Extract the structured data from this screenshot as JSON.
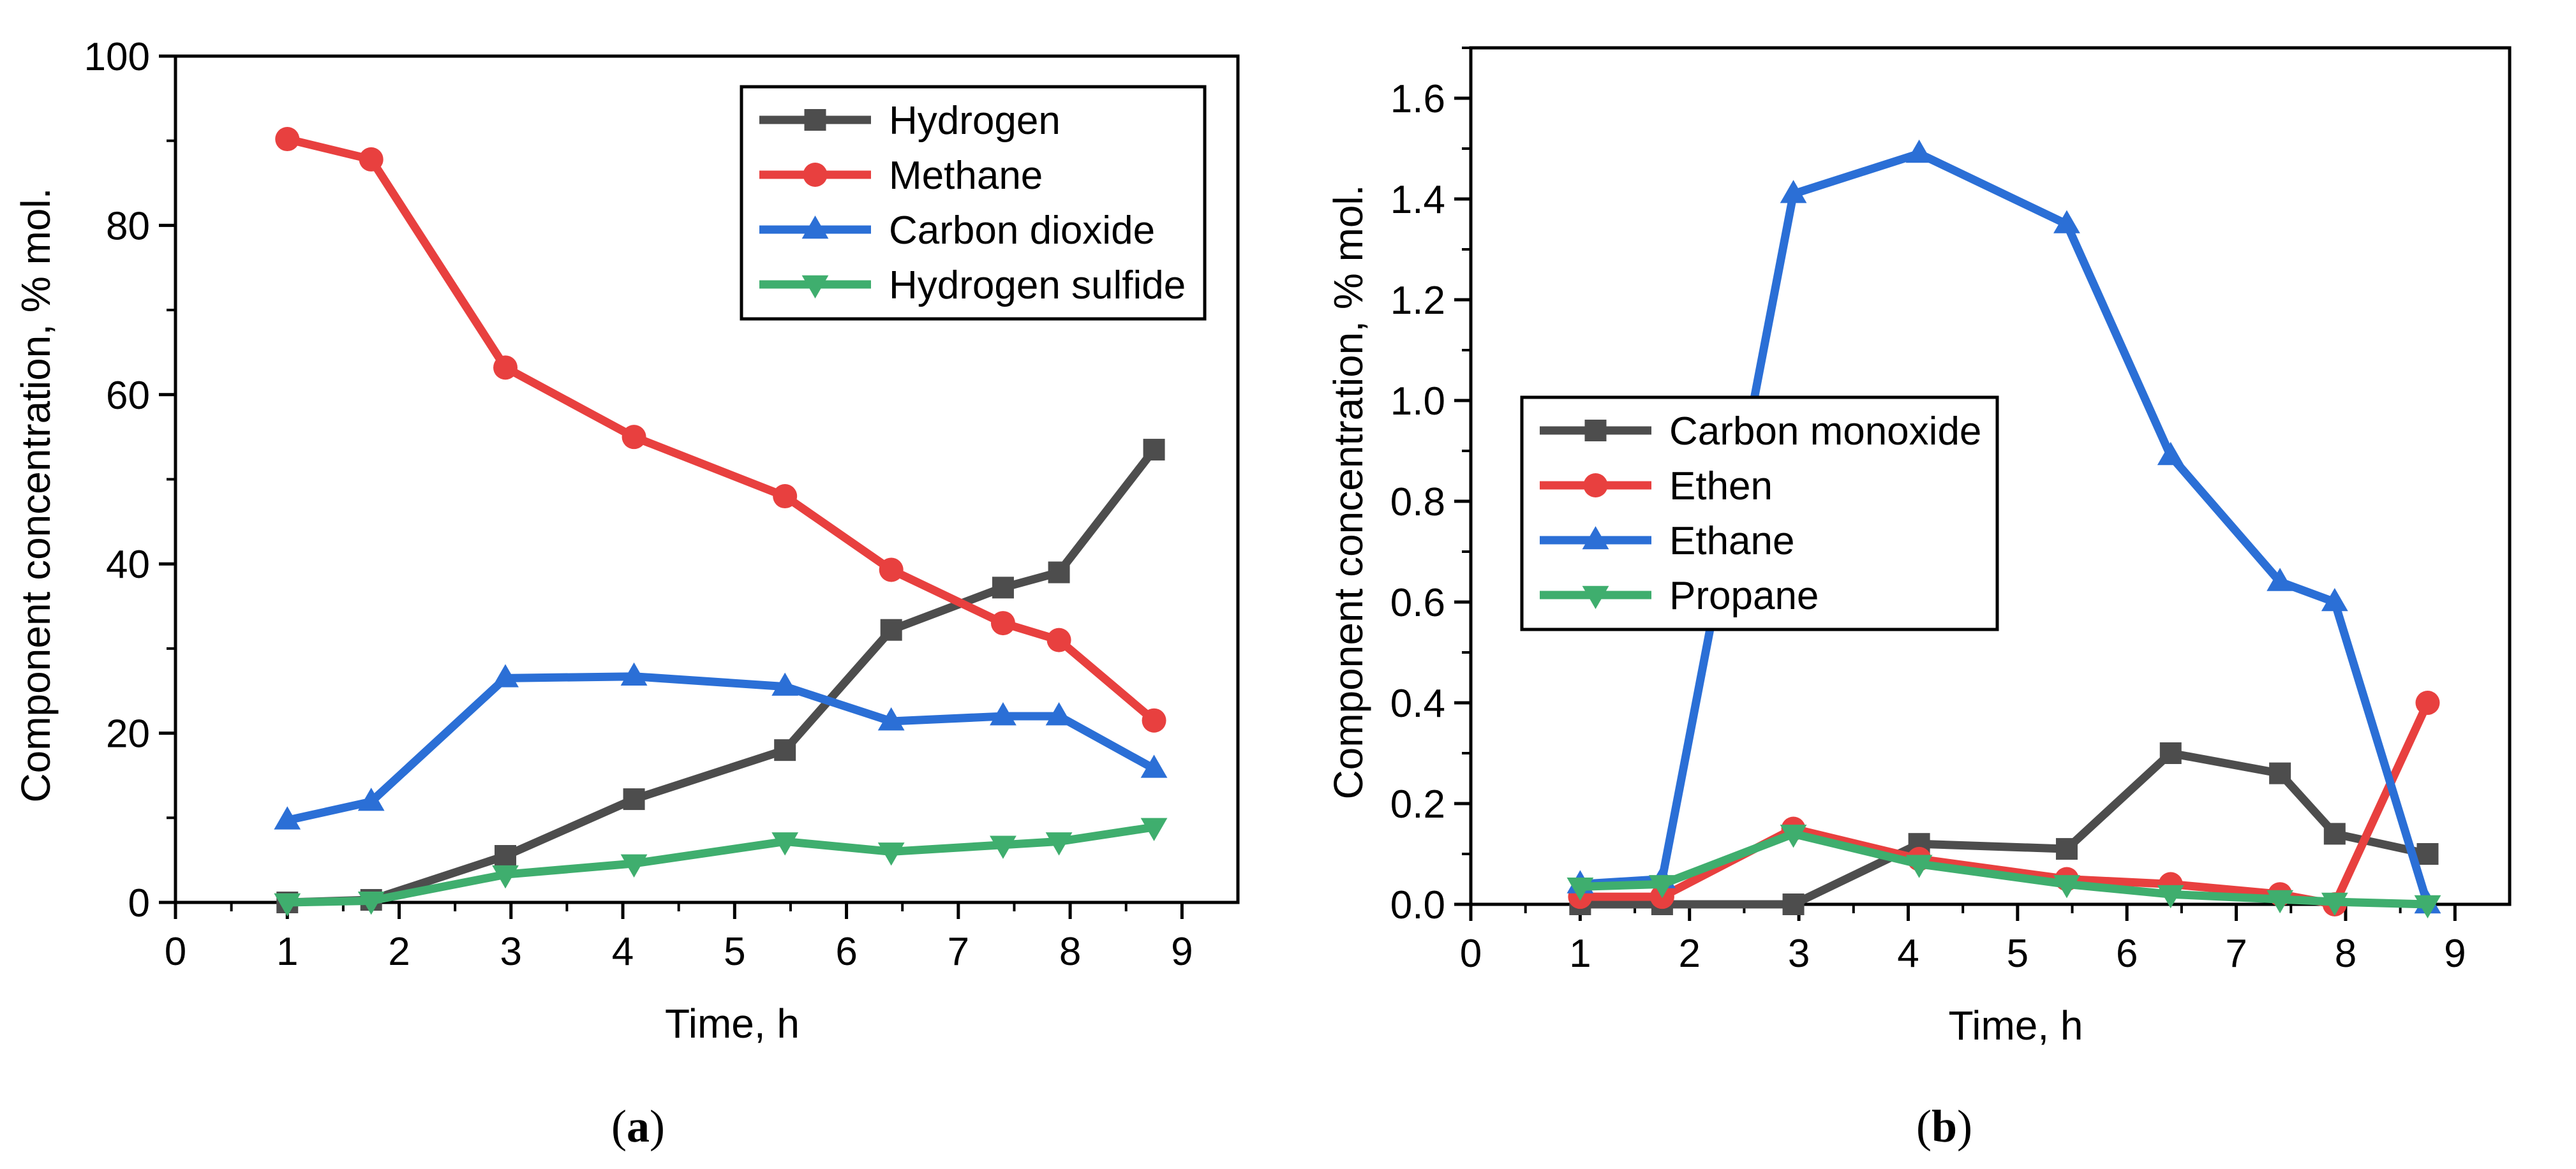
{
  "chart_data": [
    {
      "type": "line",
      "panel_label": "a",
      "xlabel": "Time, h",
      "ylabel": "Component concentration, % mol.",
      "xlim": [
        0,
        9.5
      ],
      "ylim": [
        0,
        100
      ],
      "x_ticks": [
        0,
        1,
        2,
        3,
        4,
        5,
        6,
        7,
        8,
        9
      ],
      "y_ticks": [
        0,
        20,
        40,
        60,
        80,
        100
      ],
      "y_tick_labels": [
        "0",
        "20",
        "40",
        "60",
        "80",
        "100"
      ],
      "legend_position": "top-right",
      "series": [
        {
          "name": "Hydrogen",
          "color": "#4d4d4d",
          "marker": "square",
          "x": [
            1.0,
            1.75,
            2.95,
            4.1,
            5.45,
            6.4,
            7.4,
            7.9,
            8.75
          ],
          "y": [
            0.0,
            0.3,
            5.5,
            12.2,
            18.0,
            32.2,
            37.2,
            39.0,
            53.5
          ]
        },
        {
          "name": "Methane",
          "color": "#e8403f",
          "marker": "circle",
          "x": [
            1.0,
            1.75,
            2.95,
            4.1,
            5.45,
            6.4,
            7.4,
            7.9,
            8.75
          ],
          "y": [
            90.2,
            87.8,
            63.2,
            55.0,
            48.0,
            39.3,
            33.0,
            31.0,
            21.5
          ]
        },
        {
          "name": "Carbon dioxide",
          "color": "#2b6fd6",
          "marker": "triangle-up",
          "x": [
            1.0,
            1.75,
            2.95,
            4.1,
            5.45,
            6.4,
            7.4,
            7.9,
            8.75
          ],
          "y": [
            9.7,
            11.9,
            26.5,
            26.7,
            25.5,
            21.4,
            22.0,
            22.0,
            15.8
          ]
        },
        {
          "name": "Hydrogen sulfide",
          "color": "#3fae6e",
          "marker": "triangle-down",
          "x": [
            1.0,
            1.75,
            2.95,
            4.1,
            5.45,
            6.4,
            7.4,
            7.9,
            8.75
          ],
          "y": [
            0.0,
            0.2,
            3.3,
            4.6,
            7.2,
            6.0,
            6.8,
            7.2,
            8.9
          ]
        }
      ]
    },
    {
      "type": "line",
      "panel_label": "b",
      "xlabel": "Time, h",
      "ylabel": "Component concentration, % mol.",
      "xlim": [
        0,
        9.5
      ],
      "ylim": [
        0,
        1.7
      ],
      "x_ticks": [
        0,
        1,
        2,
        3,
        4,
        5,
        6,
        7,
        8,
        9
      ],
      "y_ticks": [
        0,
        0.2,
        0.4,
        0.6,
        0.8,
        1.0,
        1.2,
        1.4,
        1.6
      ],
      "y_tick_labels": [
        "0.0",
        "0.2",
        "0.4",
        "0.6",
        "0.8",
        "1.0",
        "1.2",
        "1.4",
        "1.6"
      ],
      "legend_position": "center-left",
      "series": [
        {
          "name": "Carbon monoxide",
          "color": "#4d4d4d",
          "marker": "square",
          "x": [
            1.0,
            1.75,
            2.95,
            4.1,
            5.45,
            6.4,
            7.4,
            7.9,
            8.75
          ],
          "y": [
            0.0,
            0.0,
            0.0,
            0.12,
            0.11,
            0.3,
            0.26,
            0.14,
            0.1
          ]
        },
        {
          "name": "Ethen",
          "color": "#e8403f",
          "marker": "circle",
          "x": [
            1.0,
            1.75,
            2.95,
            4.1,
            5.45,
            6.4,
            7.4,
            7.9,
            8.75
          ],
          "y": [
            0.015,
            0.015,
            0.15,
            0.09,
            0.05,
            0.04,
            0.02,
            0.0,
            0.4
          ]
        },
        {
          "name": "Ethane",
          "color": "#2b6fd6",
          "marker": "triangle-up",
          "x": [
            1.0,
            1.75,
            2.95,
            4.1,
            5.45,
            6.4,
            7.4,
            7.9,
            8.75
          ],
          "y": [
            0.04,
            0.05,
            1.41,
            1.49,
            1.35,
            0.89,
            0.64,
            0.6,
            0.0
          ]
        },
        {
          "name": "Propane",
          "color": "#3fae6e",
          "marker": "triangle-down",
          "x": [
            1.0,
            1.75,
            2.95,
            4.1,
            5.45,
            6.4,
            7.4,
            7.9,
            8.75
          ],
          "y": [
            0.035,
            0.04,
            0.14,
            0.08,
            0.04,
            0.02,
            0.01,
            0.005,
            0.0
          ]
        }
      ]
    }
  ]
}
